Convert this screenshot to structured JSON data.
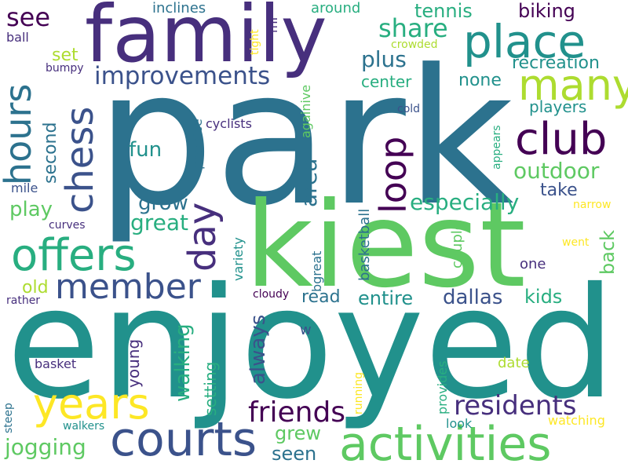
{
  "background": "#ffffff",
  "palette": [
    "#440154",
    "#472f7d",
    "#3b528b",
    "#2c728e",
    "#21918c",
    "#28ae80",
    "#5ec962",
    "#addc30",
    "#fde725"
  ],
  "words": [
    {
      "text": "park",
      "color": "#2c728e"
    },
    {
      "text": "enjoyed",
      "color": "#21918c"
    },
    {
      "text": "kiest",
      "color": "#5ec962"
    },
    {
      "text": "family",
      "color": "#472f7d"
    },
    {
      "text": "activities",
      "color": "#5ec962"
    },
    {
      "text": "courts",
      "color": "#3b528b"
    },
    {
      "text": "years",
      "color": "#fde725"
    },
    {
      "text": "offers",
      "color": "#28ae80"
    },
    {
      "text": "club",
      "color": "#440154"
    },
    {
      "text": "place",
      "color": "#21918c"
    },
    {
      "text": "many",
      "color": "#addc30"
    },
    {
      "text": "member",
      "color": "#3b528b"
    },
    {
      "text": "chess",
      "color": "#3b528b"
    },
    {
      "text": "hours",
      "color": "#2c728e"
    },
    {
      "text": "day",
      "color": "#472f7d"
    },
    {
      "text": "loop",
      "color": "#440154"
    },
    {
      "text": "residents",
      "color": "#472f7d"
    },
    {
      "text": "friends",
      "color": "#440154"
    },
    {
      "text": "improvements",
      "color": "#3b528b"
    },
    {
      "text": "see",
      "color": "#440154"
    },
    {
      "text": "share",
      "color": "#28ae80"
    },
    {
      "text": "outdoor",
      "color": "#5ec962"
    },
    {
      "text": "especially",
      "color": "#28ae80"
    },
    {
      "text": "jogging",
      "color": "#5ec962"
    },
    {
      "text": "area",
      "color": "#2c728e"
    },
    {
      "text": "plus",
      "color": "#2c728e"
    },
    {
      "text": "tennis",
      "color": "#28ae80"
    },
    {
      "text": "biking",
      "color": "#440154"
    },
    {
      "text": "recreation",
      "color": "#21918c"
    },
    {
      "text": "none",
      "color": "#21918c"
    },
    {
      "text": "grow",
      "color": "#2c728e"
    },
    {
      "text": "great",
      "color": "#28ae80"
    },
    {
      "text": "fun",
      "color": "#21918c"
    },
    {
      "text": "play",
      "color": "#5ec962"
    },
    {
      "text": "take",
      "color": "#3b528b"
    },
    {
      "text": "back",
      "color": "#5ec962"
    },
    {
      "text": "walking",
      "color": "#28ae80"
    },
    {
      "text": "always",
      "color": "#3b528b"
    },
    {
      "text": "entire",
      "color": "#21918c"
    },
    {
      "text": "dallas",
      "color": "#3b528b"
    },
    {
      "text": "kids",
      "color": "#28ae80"
    },
    {
      "text": "read",
      "color": "#2c728e"
    },
    {
      "text": "grew",
      "color": "#5ec962"
    },
    {
      "text": "seen",
      "color": "#2c728e"
    },
    {
      "text": "second",
      "color": "#2c728e"
    },
    {
      "text": "setting",
      "color": "#28ae80"
    },
    {
      "text": "young",
      "color": "#472f7d"
    },
    {
      "text": "old",
      "color": "#addc30"
    },
    {
      "text": "set",
      "color": "#addc30"
    },
    {
      "text": "center",
      "color": "#28ae80"
    },
    {
      "text": "players",
      "color": "#21918c"
    },
    {
      "text": "inclines",
      "color": "#2c728e"
    },
    {
      "text": "around",
      "color": "#28ae80"
    },
    {
      "text": "ball",
      "color": "#472f7d"
    },
    {
      "text": "bumpy",
      "color": "#472f7d"
    },
    {
      "text": "mi",
      "color": "#472f7d"
    },
    {
      "text": "tight",
      "color": "#fde725"
    },
    {
      "text": "crowded",
      "color": "#addc30"
    },
    {
      "text": "againive",
      "color": "#5ec962"
    },
    {
      "text": "cold",
      "color": "#3b528b"
    },
    {
      "text": "cyclists",
      "color": "#472f7d"
    },
    {
      "text": "practice",
      "color": "#2c728e"
    },
    {
      "text": "variety",
      "color": "#21918c"
    },
    {
      "text": "bgreat",
      "color": "#2c728e"
    },
    {
      "text": "basketball",
      "color": "#2c728e"
    },
    {
      "text": "couple",
      "color": "#5ec962"
    },
    {
      "text": "appears",
      "color": "#28ae80"
    },
    {
      "text": "narrow",
      "color": "#fde725"
    },
    {
      "text": "went",
      "color": "#fde725"
    },
    {
      "text": "one",
      "color": "#472f7d"
    },
    {
      "text": "mile",
      "color": "#3b528b"
    },
    {
      "text": "curves",
      "color": "#472f7d"
    },
    {
      "text": "rather",
      "color": "#472f7d"
    },
    {
      "text": "cloudy",
      "color": "#440154"
    },
    {
      "text": "w",
      "color": "#3b528b"
    },
    {
      "text": "basket",
      "color": "#472f7d"
    },
    {
      "text": "date",
      "color": "#addc30"
    },
    {
      "text": "running",
      "color": "#fde725"
    },
    {
      "text": "provides",
      "color": "#28ae80"
    },
    {
      "text": "steep",
      "color": "#2c728e"
    },
    {
      "text": "walkers",
      "color": "#21918c"
    },
    {
      "text": "look",
      "color": "#21918c"
    },
    {
      "text": "watching",
      "color": "#fde725"
    }
  ]
}
